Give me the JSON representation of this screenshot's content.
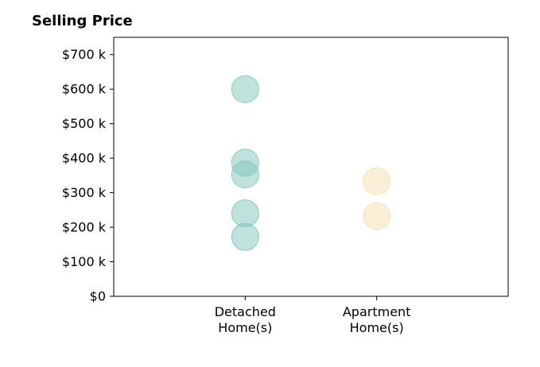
{
  "chart_data": {
    "type": "scatter",
    "title": "Selling Price",
    "categories": [
      "Detached\nHome(s)",
      "Apartment\nHome(s)"
    ],
    "x_category_labels": [
      [
        "Detached",
        "Home(s)"
      ],
      [
        "Apartment",
        "Home(s)"
      ]
    ],
    "ylim": [
      0,
      750000
    ],
    "y_ticks": [
      0,
      100000,
      200000,
      300000,
      400000,
      500000,
      600000,
      700000
    ],
    "y_tick_labels": [
      "$0",
      "$100 k",
      "$200 k",
      "$300 k",
      "$400 k",
      "$500 k",
      "$600 k",
      "$700 k"
    ],
    "grid": false,
    "legend": "none",
    "series": [
      {
        "category_index": 0,
        "color": "#7fc6bc",
        "values": [
          600000,
          387000,
          353000,
          240000,
          172000
        ]
      },
      {
        "category_index": 1,
        "color": "#f3dfb0",
        "values": [
          333000,
          232000
        ]
      }
    ]
  }
}
